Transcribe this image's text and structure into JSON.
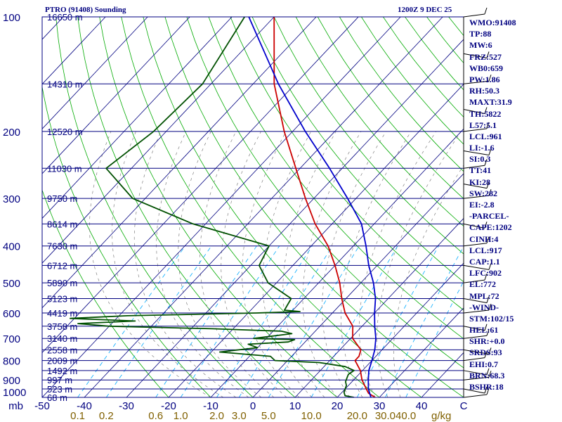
{
  "header": {
    "station": "PTRO (91408) Sounding",
    "time": "1200Z  9 DEC 25"
  },
  "stats": [
    "WMO:91408",
    "TP:88",
    "MW:6",
    "FRZ:527",
    "WB0:659",
    "PW:1.86",
    "RH:50.3",
    "MAXT:31.9",
    "TH:5822",
    "L57:5.1",
    "LCL:961",
    "LI:-1.6",
    "SI:0.3",
    "TT:41",
    "KI:28",
    "SW:282",
    "EI:-2.8",
    "-PARCEL-",
    "CAPE:1202",
    "CINH:4",
    "LCL:917",
    "CAP:1.1",
    "LFC:902",
    "EL:772",
    "MPL:72",
    "-WIND-",
    "STM:102/15",
    "HEL:61",
    "SHR:+0.0",
    "SRDS:93",
    "EHI:0.7",
    "BRN:68.3",
    "BSHR:18"
  ],
  "colors": {
    "axis": "#000080",
    "isotherm": "#000080",
    "isobar": "#000080",
    "dry_adiabat": "#00aa00",
    "moist_adiabat": "#808080",
    "mixing_ratio": "#00aaff",
    "temperature": "#cc0000",
    "dewpoint": "#005000",
    "parcel": "#0000cc",
    "label_mixing": "#806000",
    "label_height": "#000080"
  },
  "chart_data": {
    "type": "skew-t",
    "pressure_axis": {
      "unit": "mb",
      "ticks": [
        100,
        200,
        300,
        400,
        500,
        600,
        700,
        800,
        900,
        1000
      ],
      "range": [
        100,
        1000
      ],
      "scale": "log"
    },
    "temperature_axis": {
      "unit": "C",
      "ticks": [
        -50,
        -40,
        -30,
        -20,
        -10,
        0,
        10,
        20,
        30,
        40
      ],
      "tick_labels": [
        "-50",
        "-40",
        "-30",
        "-20",
        "-10",
        "0",
        "10",
        "20",
        "30",
        "40"
      ],
      "last_label": "C"
    },
    "mixing_ratio_axis": {
      "unit": "g/kg",
      "ticks": [
        0.1,
        0.2,
        0.6,
        1.0,
        2.0,
        3.0,
        5.0,
        10.0,
        20.0,
        30.0,
        40.0
      ],
      "tick_labels": [
        "0.1",
        "0.2",
        "0.6",
        "1.0",
        "2.0",
        "3.0",
        "5.0",
        "10.0",
        "20.0",
        "30.0",
        "40.0"
      ]
    },
    "height_levels": [
      {
        "p": 100,
        "label": "16650 m"
      },
      {
        "p": 150,
        "label": "14310 m"
      },
      {
        "p": 200,
        "label": "12520 m"
      },
      {
        "p": 250,
        "label": "11030 m"
      },
      {
        "p": 300,
        "label": "9750 m"
      },
      {
        "p": 350,
        "label": "8614 m"
      },
      {
        "p": 400,
        "label": "7630 m"
      },
      {
        "p": 450,
        "label": "6712 m"
      },
      {
        "p": 500,
        "label": "5890 m"
      },
      {
        "p": 550,
        "label": "5123 m"
      },
      {
        "p": 600,
        "label": "4419 m"
      },
      {
        "p": 650,
        "label": "3758 m"
      },
      {
        "p": 700,
        "label": "3140 m"
      },
      {
        "p": 750,
        "label": "2558 m"
      },
      {
        "p": 800,
        "label": "2009 m"
      },
      {
        "p": 850,
        "label": "1492 m"
      },
      {
        "p": 900,
        "label": "997 m"
      },
      {
        "p": 950,
        "label": "523 m"
      },
      {
        "p": 1000,
        "label": "68 m"
      }
    ],
    "series": [
      {
        "key": "temperature",
        "points": [
          [
            100,
            -80
          ],
          [
            150,
            -65
          ],
          [
            200,
            -52
          ],
          [
            250,
            -41
          ],
          [
            300,
            -32
          ],
          [
            350,
            -24
          ],
          [
            400,
            -16
          ],
          [
            450,
            -10
          ],
          [
            500,
            -5
          ],
          [
            550,
            -1
          ],
          [
            600,
            3
          ],
          [
            650,
            7.8
          ],
          [
            700,
            10.5
          ],
          [
            750,
            15
          ],
          [
            780,
            16
          ],
          [
            800,
            16
          ],
          [
            850,
            19.5
          ],
          [
            900,
            22
          ],
          [
            950,
            25
          ],
          [
            975,
            26.5
          ],
          [
            1000,
            29
          ]
        ]
      },
      {
        "key": "dewpoint",
        "points": [
          [
            100,
            -87
          ],
          [
            150,
            -82
          ],
          [
            200,
            -83
          ],
          [
            250,
            -86
          ],
          [
            300,
            -73
          ],
          [
            350,
            -53
          ],
          [
            400,
            -30
          ],
          [
            450,
            -28
          ],
          [
            500,
            -22
          ],
          [
            550,
            -13
          ],
          [
            590,
            -12
          ],
          [
            595,
            -8
          ],
          [
            600,
            -18
          ],
          [
            610,
            -48
          ],
          [
            620,
            -61
          ],
          [
            630,
            -45
          ],
          [
            640,
            -58
          ],
          [
            650,
            -50
          ],
          [
            660,
            -25
          ],
          [
            670,
            -8
          ],
          [
            680,
            -5
          ],
          [
            700,
            -13
          ],
          [
            705,
            -3
          ],
          [
            715,
            -4
          ],
          [
            725,
            -13
          ],
          [
            740,
            -10
          ],
          [
            760,
            -18
          ],
          [
            780,
            -5
          ],
          [
            800,
            -3
          ],
          [
            810,
            8
          ],
          [
            830,
            15
          ],
          [
            850,
            18
          ],
          [
            870,
            17.5
          ],
          [
            890,
            18
          ],
          [
            910,
            18.5
          ],
          [
            930,
            19.5
          ],
          [
            950,
            20
          ],
          [
            970,
            20.5
          ],
          [
            990,
            21.5
          ],
          [
            1000,
            24
          ]
        ]
      },
      {
        "key": "parcel",
        "points": [
          [
            100,
            -86
          ],
          [
            150,
            -64
          ],
          [
            200,
            -47
          ],
          [
            250,
            -33
          ],
          [
            300,
            -22
          ],
          [
            350,
            -13
          ],
          [
            400,
            -7
          ],
          [
            450,
            -2
          ],
          [
            500,
            3
          ],
          [
            550,
            7
          ],
          [
            600,
            10
          ],
          [
            650,
            13
          ],
          [
            700,
            16
          ],
          [
            750,
            18.3
          ],
          [
            800,
            20
          ],
          [
            850,
            21.5
          ],
          [
            900,
            23.5
          ],
          [
            950,
            25.5
          ],
          [
            1000,
            28
          ]
        ]
      }
    ]
  }
}
